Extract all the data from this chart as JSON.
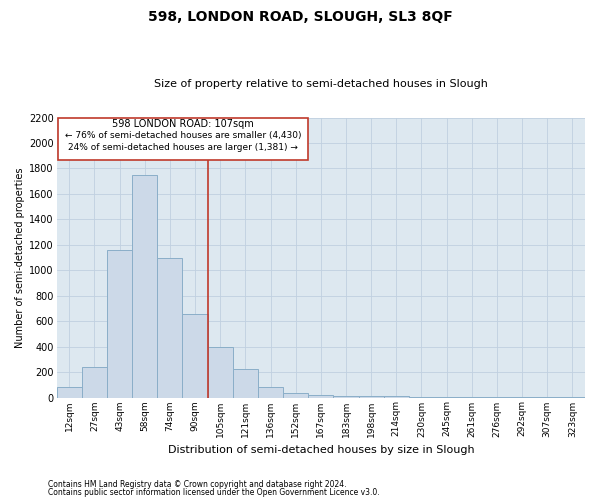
{
  "title": "598, LONDON ROAD, SLOUGH, SL3 8QF",
  "subtitle": "Size of property relative to semi-detached houses in Slough",
  "xlabel": "Distribution of semi-detached houses by size in Slough",
  "ylabel": "Number of semi-detached properties",
  "footnote1": "Contains HM Land Registry data © Crown copyright and database right 2024.",
  "footnote2": "Contains public sector information licensed under the Open Government Licence v3.0.",
  "annotation_title": "598 LONDON ROAD: 107sqm",
  "annotation_line1": "← 76% of semi-detached houses are smaller (4,430)",
  "annotation_line2": "24% of semi-detached houses are larger (1,381) →",
  "bar_categories": [
    "12sqm",
    "27sqm",
    "43sqm",
    "58sqm",
    "74sqm",
    "90sqm",
    "105sqm",
    "121sqm",
    "136sqm",
    "152sqm",
    "167sqm",
    "183sqm",
    "198sqm",
    "214sqm",
    "230sqm",
    "245sqm",
    "261sqm",
    "276sqm",
    "292sqm",
    "307sqm",
    "323sqm"
  ],
  "bar_values": [
    80,
    240,
    1160,
    1750,
    1100,
    660,
    400,
    225,
    80,
    35,
    20,
    15,
    10,
    8,
    5,
    4,
    3,
    2,
    2,
    1,
    1
  ],
  "bar_color": "#ccd9e8",
  "bar_edge_color": "#8aaec8",
  "vline_color": "#c0392b",
  "vline_x_idx": 5.5,
  "ylim": [
    0,
    2200
  ],
  "yticks": [
    0,
    200,
    400,
    600,
    800,
    1000,
    1200,
    1400,
    1600,
    1800,
    2000,
    2200
  ],
  "grid_color": "#c0d0e0",
  "annotation_box_edgecolor": "#c0392b",
  "bg_color": "#dde8f0",
  "title_fontsize": 10,
  "subtitle_fontsize": 8,
  "ylabel_fontsize": 7,
  "xlabel_fontsize": 8,
  "tick_fontsize": 6.5,
  "ytick_fontsize": 7,
  "footnote_fontsize": 5.5,
  "ann_fontsize_title": 7,
  "ann_fontsize_lines": 6.5
}
